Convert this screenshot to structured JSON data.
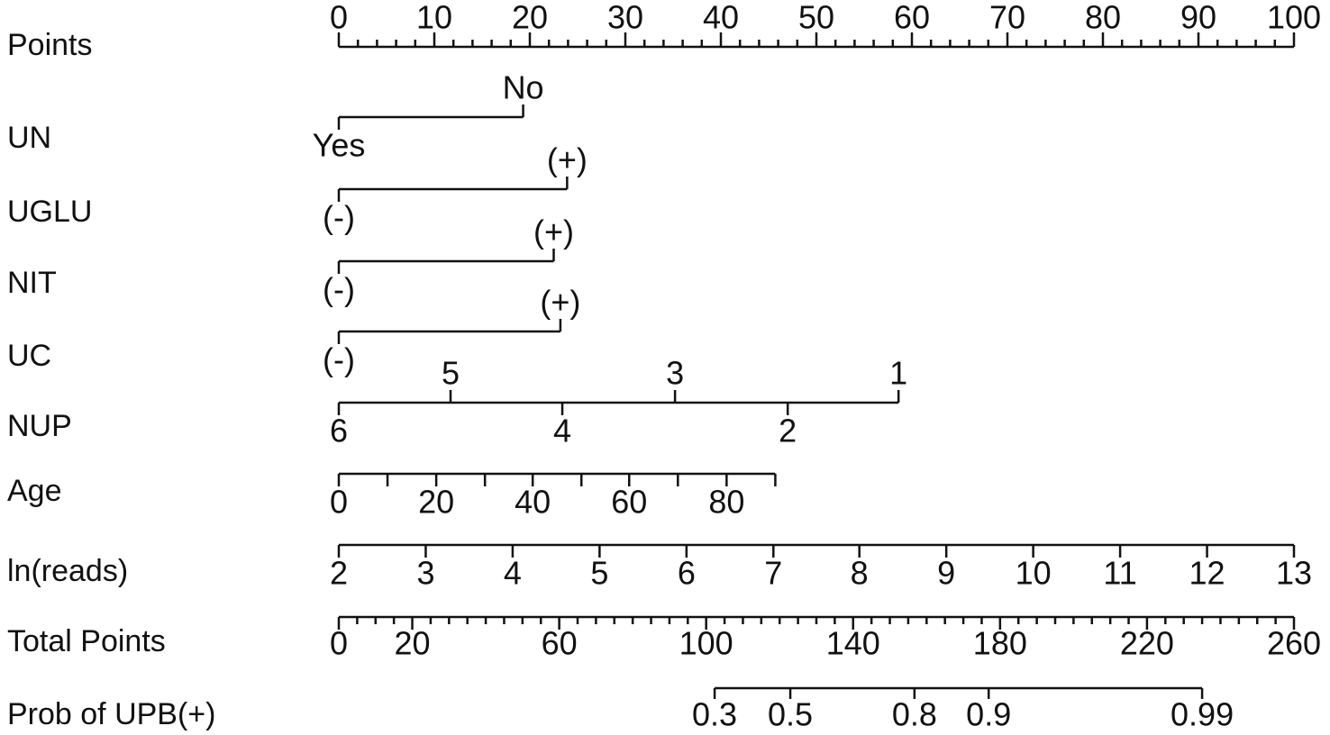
{
  "chart_data": {
    "type": "nomogram",
    "points_axis": {
      "label": "Points",
      "xlim": [
        0,
        100
      ],
      "ticks": [
        0,
        10,
        20,
        30,
        40,
        50,
        60,
        70,
        80,
        90,
        100
      ],
      "minor_ticks": [
        2,
        4,
        6,
        8,
        12,
        14,
        16,
        18,
        22,
        24,
        26,
        28,
        32,
        34,
        36,
        38,
        42,
        44,
        46,
        48,
        52,
        54,
        56,
        58,
        62,
        64,
        66,
        68,
        72,
        74,
        76,
        78,
        82,
        84,
        86,
        88,
        92,
        94,
        96,
        98
      ]
    },
    "variables": [
      {
        "name": "UN",
        "levels": [
          "Yes",
          "No"
        ],
        "points": [
          0,
          19.3
        ]
      },
      {
        "name": "UGLU",
        "levels": [
          "(-)",
          "(+)"
        ],
        "points": [
          0,
          23.9
        ]
      },
      {
        "name": "NIT",
        "levels": [
          "(-)",
          "(+)"
        ],
        "points": [
          0,
          22.5
        ]
      },
      {
        "name": "UC",
        "levels": [
          "(-)",
          "(+)"
        ],
        "points": [
          0,
          23.2
        ]
      },
      {
        "name": "NUP",
        "levels": [
          "6",
          "5",
          "4",
          "3",
          "2",
          "1"
        ],
        "points": [
          0,
          11.7,
          23.4,
          35.2,
          47,
          58.6
        ]
      },
      {
        "name": "Age",
        "levels": [
          0,
          null,
          20,
          null,
          40,
          null,
          60,
          null,
          80,
          null
        ],
        "points": [
          0,
          5.1,
          10.2,
          15.3,
          20.3,
          25.4,
          30.4,
          35.5,
          40.6,
          45.7
        ]
      },
      {
        "name": "ln(reads)",
        "levels": [
          2,
          3,
          4,
          5,
          6,
          7,
          8,
          9,
          10,
          11,
          12,
          13
        ],
        "points": [
          0,
          9.1,
          18.2,
          27.3,
          36.4,
          45.5,
          54.5,
          63.6,
          72.7,
          81.8,
          90.9,
          100
        ]
      }
    ],
    "total_points": {
      "label": "Total Points",
      "xlim": [
        0,
        260
      ],
      "ticks": [
        0,
        20,
        60,
        100,
        140,
        180,
        220,
        260
      ],
      "minor_ticks": [
        5,
        10,
        15,
        25,
        30,
        35,
        40,
        45,
        50,
        55,
        65,
        70,
        75,
        80,
        85,
        90,
        95,
        105,
        110,
        115,
        120,
        125,
        130,
        135,
        145,
        150,
        155,
        160,
        165,
        170,
        175,
        185,
        190,
        195,
        200,
        205,
        210,
        215,
        225,
        230,
        235,
        240,
        245,
        250,
        255
      ]
    },
    "probability": {
      "label": "Prob of UPB(+)",
      "ticks": [
        0.3,
        0.5,
        0.8,
        0.9,
        0.99
      ],
      "total_points": [
        102.3,
        122.9,
        156.7,
        176.9,
        235
      ]
    }
  }
}
